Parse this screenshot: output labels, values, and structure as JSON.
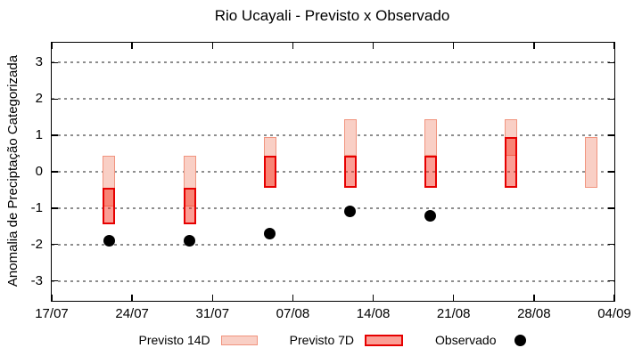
{
  "chart_data": {
    "type": "bar",
    "subtype": "range-bars-with-scatter",
    "title": "Rio Ucayali - Previsto x Observado",
    "ylabel": "Anomalia de Preciptação Categorizada",
    "xlabel": "",
    "ylim": [
      -3.55,
      3.55
    ],
    "yticks": [
      3,
      2,
      1,
      0,
      -1,
      -2,
      -3
    ],
    "xtick_labels": [
      "17/07",
      "24/07",
      "31/07",
      "07/08",
      "14/08",
      "21/08",
      "28/08",
      "04/09"
    ],
    "xtick_days": [
      0,
      7,
      14,
      21,
      28,
      35,
      42,
      49
    ],
    "grid": "horizontal dotted gray",
    "legend_position": "bottom center",
    "categories": [
      "22/07",
      "29/07",
      "05/08",
      "12/08",
      "19/08",
      "26/08",
      "02/09"
    ],
    "category_days": [
      5,
      12,
      19,
      26,
      33,
      40,
      47
    ],
    "series": [
      {
        "name": "Previsto 14D",
        "type": "range-bar",
        "fill": "#f9cfc5",
        "border": "#f1947f",
        "ranges": [
          [
            0.45,
            -0.95
          ],
          [
            0.45,
            -0.95
          ],
          [
            0.95,
            -0.45
          ],
          [
            1.45,
            0.45
          ],
          [
            1.45,
            0.45
          ],
          [
            1.45,
            0.45
          ],
          [
            0.95,
            -0.45
          ]
        ]
      },
      {
        "name": "Previsto 7D",
        "type": "range-bar",
        "fill": "rgba(246,40,20,0.45)",
        "fill_flat": "#fb9e95",
        "border": "#e60000",
        "ranges": [
          [
            -0.45,
            -1.45
          ],
          [
            -0.45,
            -1.45
          ],
          [
            0.45,
            -0.45
          ],
          [
            0.45,
            -0.45
          ],
          [
            0.45,
            -0.45
          ],
          [
            0.95,
            -0.45
          ],
          null
        ]
      },
      {
        "name": "Observado",
        "type": "scatter",
        "color": "#000000",
        "values": [
          -1.9,
          -1.9,
          -1.7,
          -1.1,
          -1.2,
          null,
          null
        ]
      }
    ]
  }
}
